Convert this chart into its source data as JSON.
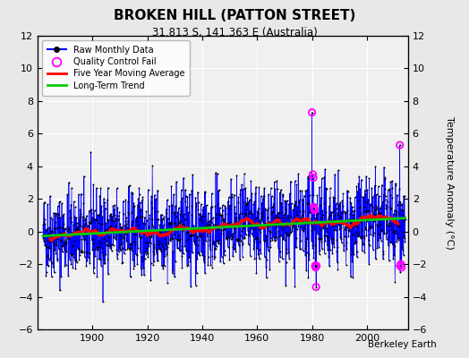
{
  "title": "BROKEN HILL (PATTON STREET)",
  "subtitle": "31.813 S, 141.363 E (Australia)",
  "ylabel": "Temperature Anomaly (°C)",
  "credit": "Berkeley Earth",
  "start_year": 1882,
  "end_year": 2014,
  "ylim": [
    -6,
    12
  ],
  "yticks": [
    -6,
    -4,
    -2,
    0,
    2,
    4,
    6,
    8,
    10,
    12
  ],
  "xticks": [
    1900,
    1920,
    1940,
    1960,
    1980,
    2000
  ],
  "bg_color": "#e8e8e8",
  "plot_bg_color": "#f0f0f0",
  "line_color_raw": "#0000ff",
  "marker_color_raw": "#000000",
  "line_color_ma": "#ff0000",
  "line_color_trend": "#00cc00",
  "qc_fail_color": "#ff00ff",
  "seed": 42,
  "ma_window": 60,
  "qc_fail_indices": [
    1176,
    1180,
    1182,
    1184,
    1186,
    1188,
    1190,
    1192,
    1194,
    1196,
    1560,
    1561,
    1565,
    1568
  ]
}
